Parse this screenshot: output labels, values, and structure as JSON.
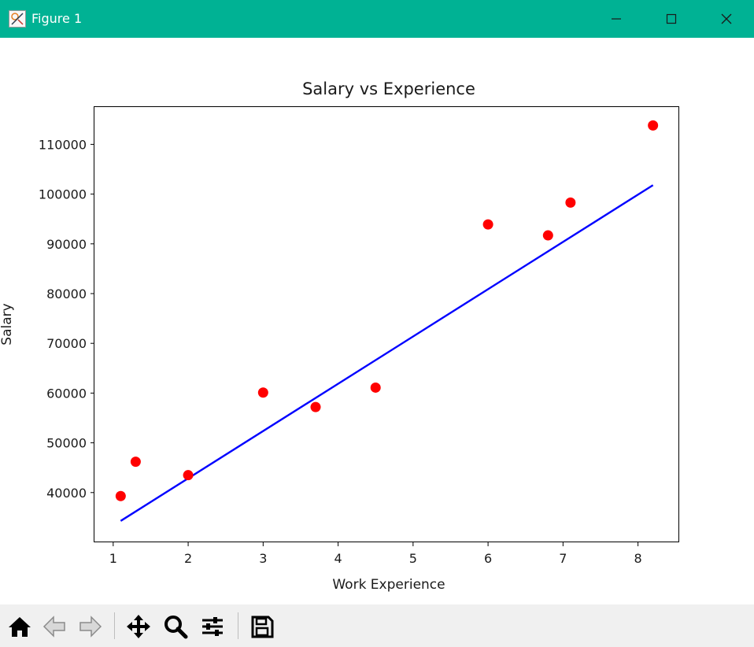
{
  "window": {
    "title": "Figure 1",
    "accent": "#00b294",
    "controls": [
      "minimize-icon",
      "maximize-icon",
      "close-icon"
    ]
  },
  "chart_data": {
    "type": "scatter",
    "title": "Salary vs Experience",
    "xlabel": "Work Experience",
    "ylabel": "Salary",
    "xlim": [
      0.75,
      8.55
    ],
    "ylim": [
      30000,
      117500
    ],
    "xticks": [
      1,
      2,
      3,
      4,
      5,
      6,
      7,
      8
    ],
    "yticks": [
      40000,
      50000,
      60000,
      70000,
      80000,
      90000,
      100000,
      110000
    ],
    "grid": false,
    "series": [
      {
        "kind": "scatter",
        "color": "#ff0000",
        "points": [
          [
            1.1,
            39300
          ],
          [
            1.3,
            46200
          ],
          [
            2.0,
            43500
          ],
          [
            3.0,
            60100
          ],
          [
            3.7,
            57200
          ],
          [
            4.5,
            61100
          ],
          [
            6.0,
            93900
          ],
          [
            6.8,
            91700
          ],
          [
            7.1,
            98300
          ],
          [
            8.2,
            113800
          ]
        ]
      },
      {
        "kind": "line",
        "color": "#0000ff",
        "points": [
          [
            1.1,
            34300
          ],
          [
            8.2,
            101800
          ]
        ]
      }
    ]
  },
  "toolbar": {
    "buttons": [
      "home-icon",
      "back-icon",
      "forward-icon",
      "pan-icon",
      "zoom-icon",
      "configure-subplots-icon",
      "save-icon"
    ]
  }
}
